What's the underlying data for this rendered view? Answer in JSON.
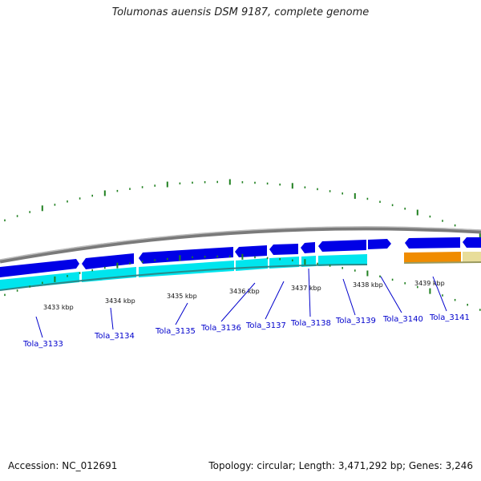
{
  "title": "Tolumonas auensis DSM 9187, complete genome",
  "accession": "Accession: NC_012691",
  "summary": "Topology: circular; Length: 3,471,292 bp; Genes: 3,246",
  "colors": {
    "backbone": "#8c8c8c",
    "cds_forward": "#0000e6",
    "cds_reverse": "#00e5ee",
    "rna": "#f08c00",
    "rna_pale": "#e8dd9a",
    "ticks": "#208020",
    "label_line": "#0000cc"
  },
  "kbp_labels": [
    "3433 kbp",
    "3434 kbp",
    "3435 kbp",
    "3436 kbp",
    "3437 kbp",
    "3438 kbp",
    "3439 kbp"
  ],
  "gene_labels": [
    "Tola_3133",
    "Tola_3134",
    "Tola_3135",
    "Tola_3136",
    "Tola_3137",
    "Tola_3138",
    "Tola_3139",
    "Tola_3140",
    "Tola_3141"
  ]
}
